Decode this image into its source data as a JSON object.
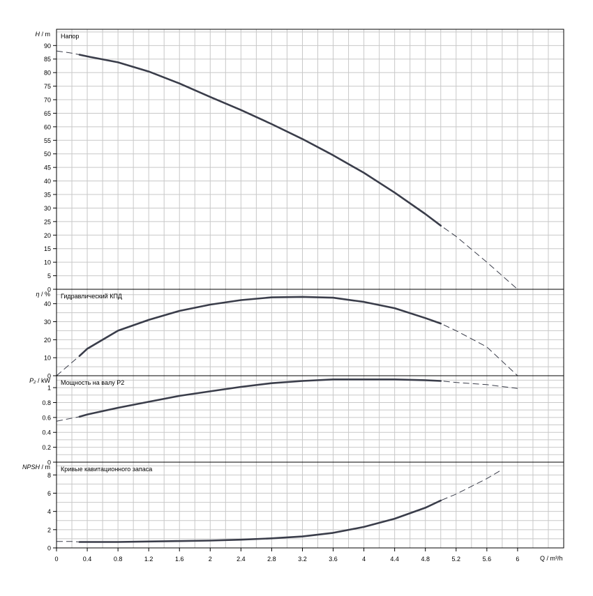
{
  "chart_data": {
    "type": "line",
    "x_axis": {
      "label": "Q / m³/h",
      "range": [
        0,
        6.6
      ],
      "ticks": [
        0,
        0.4,
        0.8,
        1.2,
        1.6,
        2,
        2.4,
        2.8,
        3.2,
        3.6,
        4,
        4.4,
        4.8,
        5.2,
        5.6,
        6
      ],
      "tick_labels": [
        "0",
        "0.4",
        "0.8",
        "1.2",
        "1.6",
        "2",
        "2.4",
        "2.8",
        "3.2",
        "3.6",
        "4",
        "4.4",
        "4.8",
        "5.2",
        "5.6",
        "6"
      ]
    },
    "grid": true,
    "panels": [
      {
        "id": "head",
        "title": "Напор",
        "ylabel": "H / m",
        "ylim": [
          0,
          96
        ],
        "yticks": [
          0,
          5,
          10,
          15,
          20,
          25,
          30,
          35,
          40,
          45,
          50,
          55,
          60,
          65,
          70,
          75,
          80,
          85,
          90
        ],
        "x": [
          0,
          0.2,
          0.3,
          0.4,
          0.8,
          1.2,
          1.6,
          2,
          2.4,
          2.8,
          3.2,
          3.6,
          4,
          4.4,
          4.8,
          5,
          5.2,
          5.6,
          6
        ],
        "y": [
          88,
          87.2,
          86.6,
          86,
          83.8,
          80.4,
          76,
          71,
          66.2,
          61,
          55.5,
          49.5,
          43,
          35.7,
          27.8,
          23.5,
          19.5,
          10,
          0
        ],
        "solid_range": [
          0.3,
          5
        ]
      },
      {
        "id": "efficiency",
        "title": "Гидравлический КПД",
        "ylabel": "η / %",
        "ylim": [
          0,
          48
        ],
        "yticks": [
          0,
          10,
          20,
          30,
          40
        ],
        "x": [
          0,
          0.3,
          0.4,
          0.8,
          1.2,
          1.6,
          2,
          2.4,
          2.8,
          3.2,
          3.6,
          4,
          4.4,
          4.8,
          5,
          5.2,
          5.6,
          6
        ],
        "y": [
          0,
          11,
          15,
          25,
          31,
          36,
          39.5,
          42,
          43.5,
          43.8,
          43.3,
          41,
          37.5,
          32,
          29,
          25,
          16,
          0
        ],
        "solid_range": [
          0.3,
          5
        ]
      },
      {
        "id": "power",
        "title": "Мощность на валу P2",
        "ylabel": "P₂ / kW",
        "ylim": [
          0,
          1.16
        ],
        "yticks": [
          0,
          0.2,
          0.4,
          0.6,
          0.8,
          1
        ],
        "ytick_labels": [
          "0",
          "0.2",
          "0.4",
          "0.6",
          "0.8",
          "1"
        ],
        "x": [
          0,
          0.3,
          0.4,
          0.8,
          1.2,
          1.6,
          2,
          2.4,
          2.8,
          3.2,
          3.6,
          4,
          4.4,
          4.8,
          5,
          5.2,
          5.6,
          6
        ],
        "y": [
          0.55,
          0.61,
          0.64,
          0.73,
          0.81,
          0.89,
          0.95,
          1.01,
          1.06,
          1.09,
          1.11,
          1.11,
          1.11,
          1.1,
          1.09,
          1.07,
          1.04,
          0.99
        ],
        "solid_range": [
          0.3,
          5
        ]
      },
      {
        "id": "npsh",
        "title": "Кривые кавитационного запаса",
        "ylabel": "NPSH / m",
        "ylim": [
          0,
          9.4
        ],
        "yticks": [
          0,
          2,
          4,
          6,
          8
        ],
        "x": [
          0,
          0.2,
          0.3,
          0.4,
          0.8,
          1.2,
          1.6,
          2,
          2.4,
          2.8,
          3.2,
          3.6,
          4,
          4.4,
          4.8,
          5,
          5.2,
          5.6,
          5.8
        ],
        "y": [
          0.7,
          0.7,
          0.65,
          0.65,
          0.65,
          0.7,
          0.75,
          0.8,
          0.9,
          1.05,
          1.25,
          1.65,
          2.3,
          3.2,
          4.4,
          5.2,
          5.9,
          7.6,
          8.6
        ],
        "solid_range": [
          0.3,
          5
        ]
      }
    ]
  }
}
